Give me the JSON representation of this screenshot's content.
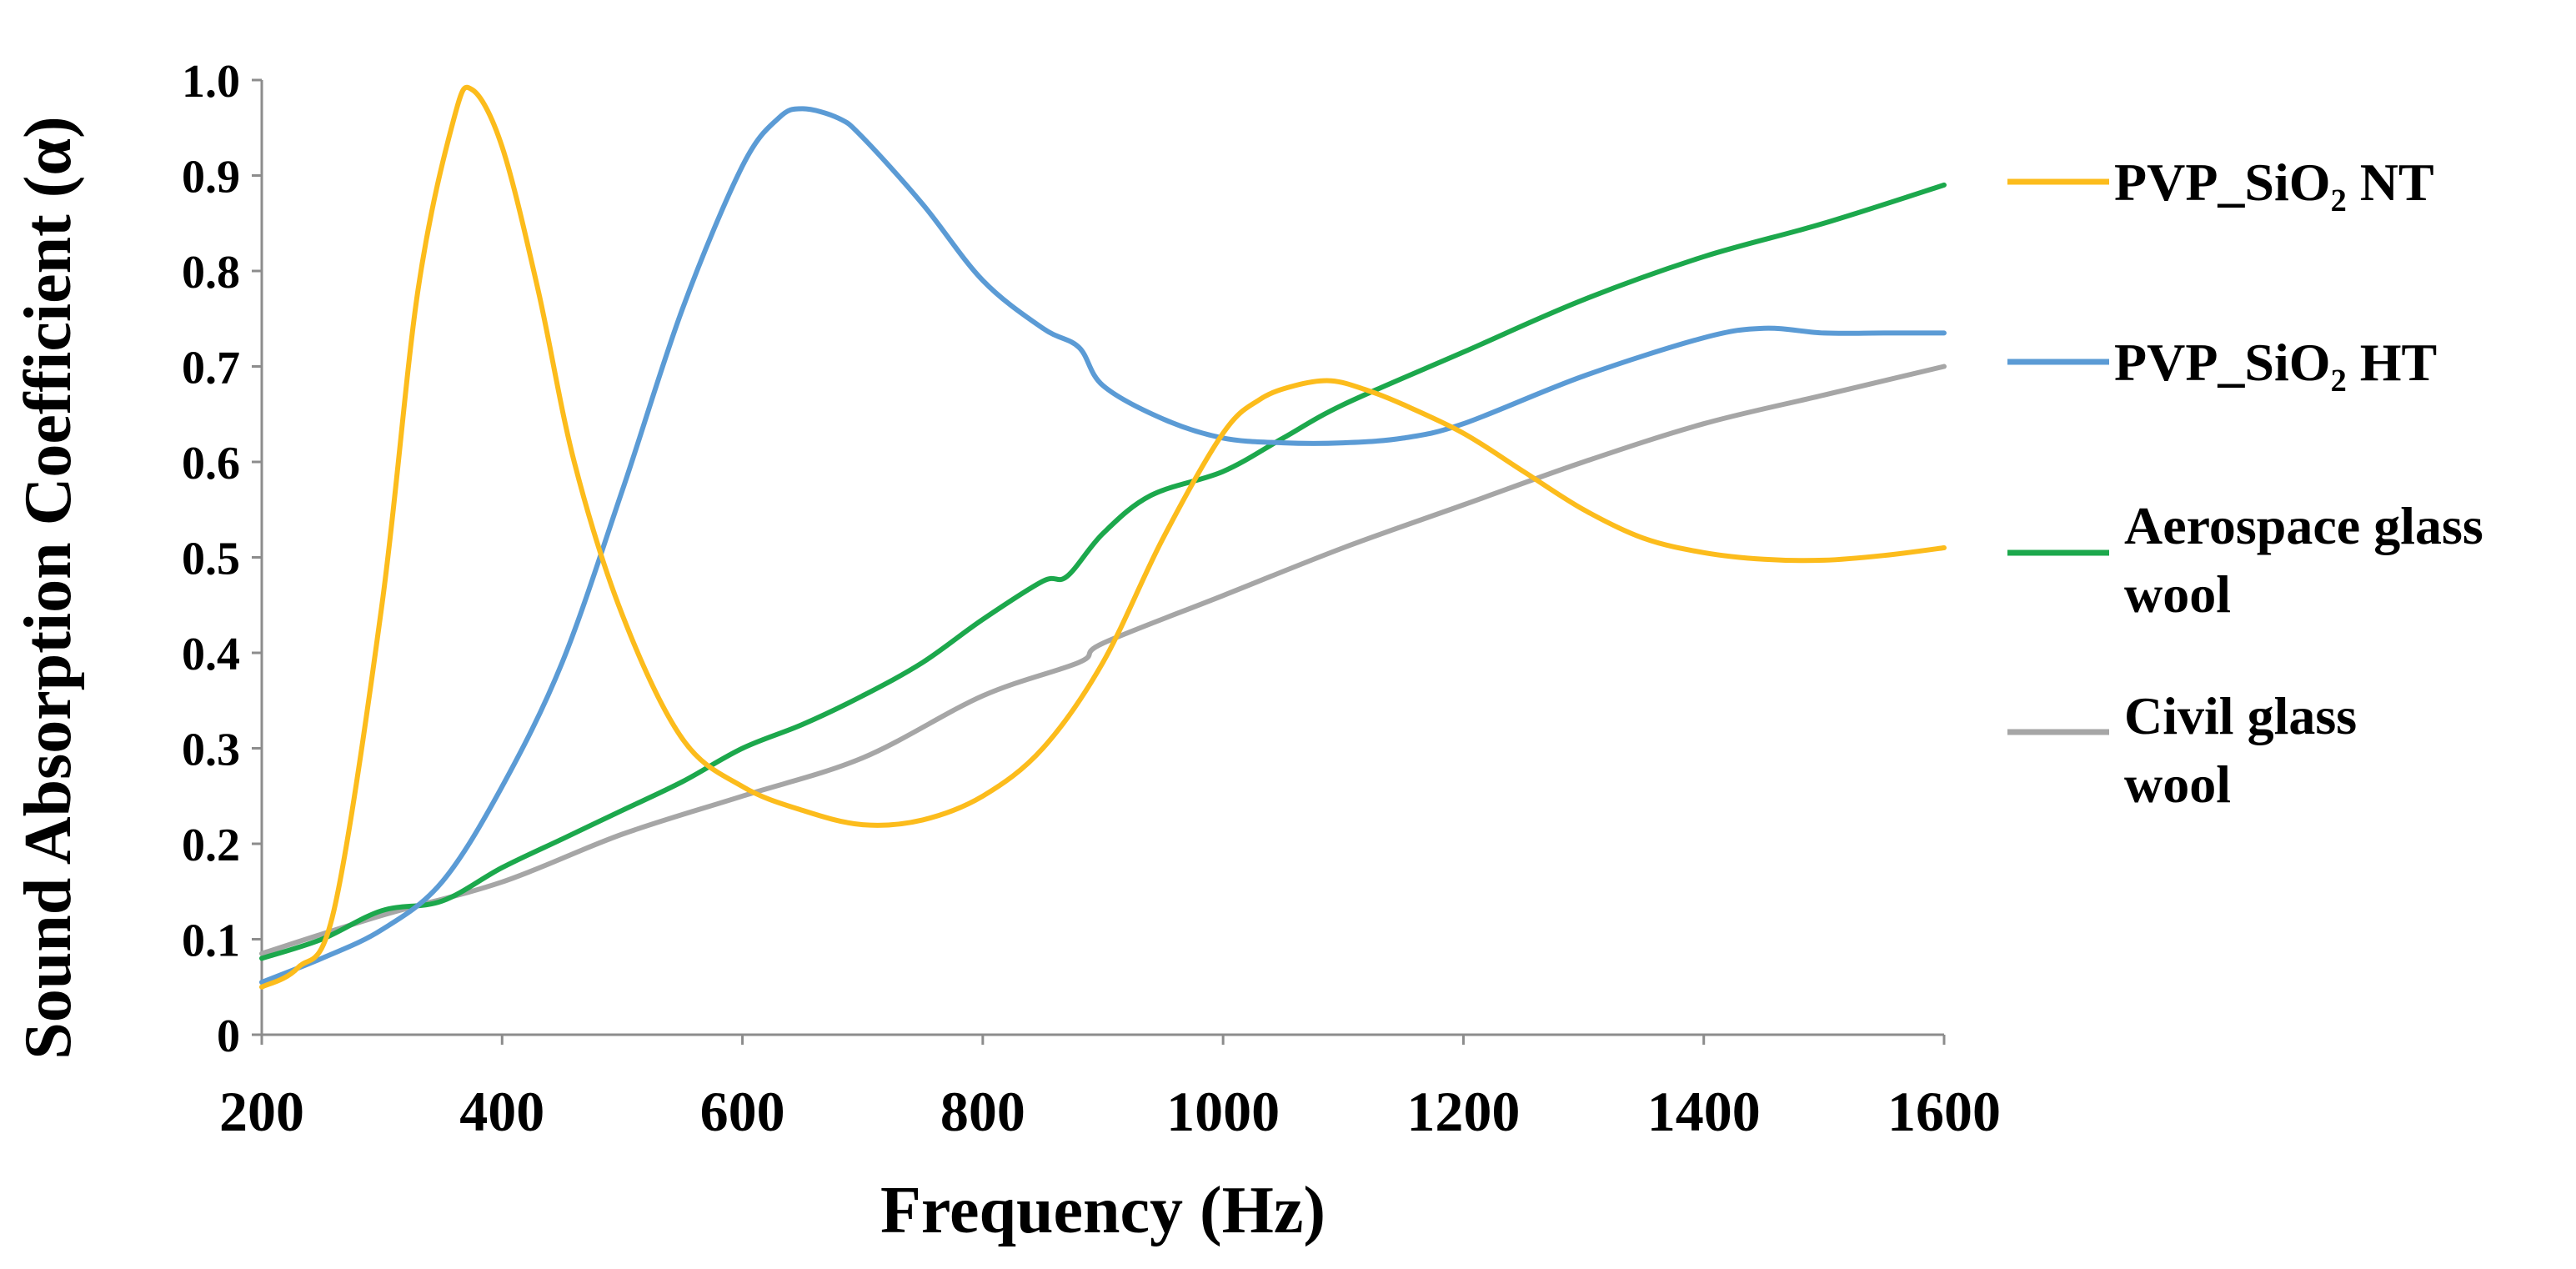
{
  "chart_data": {
    "type": "line",
    "title": "",
    "xlabel": "Frequency (Hz)",
    "ylabel": "Sound Absorption Coefficient (α)",
    "xlim": [
      200,
      1600
    ],
    "ylim": [
      0,
      1.0
    ],
    "xticks": [
      "200",
      "400",
      "600",
      "800",
      "1000",
      "1200",
      "1400",
      "1600"
    ],
    "yticks": [
      "0",
      "0.1",
      "0.2",
      "0.3",
      "0.4",
      "0.5",
      "0.6",
      "0.7",
      "0.8",
      "0.9",
      "1.0"
    ],
    "grid": false,
    "legend_position": "right",
    "series": [
      {
        "name": "PVP_SiO₂ NT",
        "color": "#fcbc1c",
        "x": [
          200,
          230,
          260,
          300,
          330,
          360,
          375,
          400,
          430,
          460,
          500,
          550,
          600,
          650,
          700,
          750,
          800,
          850,
          900,
          950,
          1000,
          1030,
          1060,
          1090,
          1120,
          1150,
          1200,
          1250,
          1300,
          1350,
          1400,
          1450,
          1500,
          1550,
          1600
        ],
        "values": [
          0.05,
          0.07,
          0.13,
          0.45,
          0.78,
          0.96,
          0.99,
          0.93,
          0.78,
          0.6,
          0.44,
          0.31,
          0.26,
          0.235,
          0.22,
          0.225,
          0.25,
          0.3,
          0.39,
          0.52,
          0.63,
          0.665,
          0.68,
          0.685,
          0.675,
          0.66,
          0.63,
          0.59,
          0.55,
          0.52,
          0.505,
          0.498,
          0.497,
          0.502,
          0.51
        ]
      },
      {
        "name": "PVP_SiO₂ HT",
        "color": "#5b9bd5",
        "x": [
          200,
          250,
          300,
          350,
          400,
          450,
          500,
          550,
          600,
          630,
          650,
          680,
          700,
          750,
          800,
          850,
          880,
          900,
          950,
          1000,
          1050,
          1100,
          1150,
          1200,
          1300,
          1400,
          1450,
          1500,
          1550,
          1600
        ],
        "values": [
          0.055,
          0.08,
          0.11,
          0.16,
          0.26,
          0.39,
          0.57,
          0.76,
          0.91,
          0.96,
          0.97,
          0.96,
          0.94,
          0.87,
          0.79,
          0.74,
          0.72,
          0.68,
          0.645,
          0.625,
          0.62,
          0.62,
          0.625,
          0.64,
          0.69,
          0.73,
          0.74,
          0.735,
          0.735,
          0.735
        ]
      },
      {
        "name": "Aerospace glass wool",
        "color": "#1ca84c",
        "x": [
          200,
          250,
          300,
          350,
          400,
          450,
          500,
          550,
          600,
          650,
          700,
          750,
          800,
          850,
          870,
          900,
          940,
          1000,
          1050,
          1100,
          1200,
          1300,
          1400,
          1500,
          1600
        ],
        "values": [
          0.08,
          0.1,
          0.13,
          0.14,
          0.175,
          0.205,
          0.235,
          0.265,
          0.3,
          0.325,
          0.355,
          0.39,
          0.435,
          0.475,
          0.48,
          0.525,
          0.565,
          0.59,
          0.625,
          0.66,
          0.715,
          0.77,
          0.815,
          0.85,
          0.89
        ]
      },
      {
        "name": "Civil glass wool",
        "color": "#a6a6a6",
        "x": [
          200,
          300,
          400,
          500,
          600,
          700,
          800,
          880,
          900,
          1000,
          1100,
          1200,
          1300,
          1400,
          1500,
          1600
        ],
        "values": [
          0.085,
          0.125,
          0.16,
          0.21,
          0.25,
          0.29,
          0.355,
          0.39,
          0.41,
          0.46,
          0.51,
          0.555,
          0.6,
          0.64,
          0.67,
          0.7
        ]
      }
    ]
  }
}
